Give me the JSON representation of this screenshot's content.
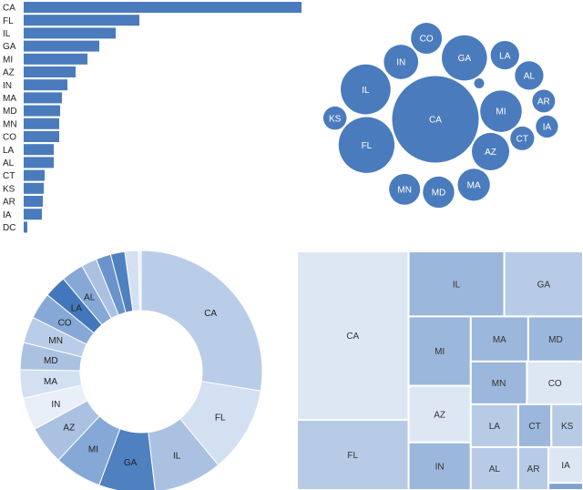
{
  "chart_data": [
    {
      "type": "bar",
      "color": "#4a7bbd",
      "categories": [
        "CA",
        "FL",
        "IL",
        "GA",
        "MI",
        "AZ",
        "IN",
        "MA",
        "MD",
        "MN",
        "CO",
        "LA",
        "AL",
        "CT",
        "KS",
        "AR",
        "IA",
        "DC"
      ],
      "values": [
        305,
        127,
        101,
        83,
        70,
        57,
        48,
        42,
        40,
        39,
        39,
        33,
        33,
        23,
        22,
        21,
        20,
        4
      ]
    },
    {
      "type": "bubble",
      "color": "#4a7bbd",
      "categories": [
        "CA",
        "FL",
        "IL",
        "GA",
        "MI",
        "AZ",
        "IN",
        "MA",
        "MD",
        "MN",
        "CO",
        "LA",
        "AL",
        "CT",
        "KS",
        "AR",
        "IA",
        null
      ],
      "values": [
        305,
        127,
        101,
        83,
        70,
        57,
        48,
        42,
        40,
        39,
        39,
        33,
        33,
        23,
        22,
        21,
        20,
        4
      ]
    },
    {
      "type": "donut",
      "categories": [
        "CA",
        "FL",
        "IL",
        "GA",
        "MI",
        "AZ",
        "IN",
        "MA",
        "MD",
        "MN",
        "CO",
        "LA",
        "AL",
        null,
        null,
        null,
        null,
        null
      ],
      "values": [
        305,
        127,
        101,
        83,
        70,
        57,
        48,
        42,
        40,
        39,
        39,
        33,
        33,
        23,
        22,
        21,
        20,
        4
      ],
      "colors": [
        "#b9cde8",
        "#d3e0f2",
        "#aac1e2",
        "#4f80c0",
        "#86a8d6",
        "#aac1e2",
        "#e9eff9",
        "#d3e0f2",
        "#aac1e2",
        "#b9cde8",
        "#86a8d6",
        "#4377bb",
        "#86a8d6",
        "#aac1e2",
        "#6b93cb",
        "#4f80c0",
        "#d3e0f2",
        "#e9eff9"
      ]
    },
    {
      "type": "treemap",
      "categories": [
        "CA",
        "FL",
        "IL",
        "GA",
        "MI",
        "AZ",
        "IN",
        "MA",
        "MD",
        "MN",
        "CO",
        "LA",
        "AL",
        "CT",
        "KS",
        "AR",
        "IA",
        null
      ],
      "values": [
        305,
        127,
        101,
        83,
        70,
        57,
        48,
        42,
        40,
        39,
        39,
        33,
        33,
        23,
        22,
        21,
        20,
        4
      ],
      "colors": [
        "#dde7f4",
        "#b7cbe6",
        "#9cb7dc",
        "#b7cbe6",
        "#9cb7dc",
        "#dde7f4",
        "#9cb7dc",
        "#9cb7dc",
        "#9cb7dc",
        "#9cb7dc",
        "#dde7f4",
        "#b7cbe6",
        "#b7cbe6",
        "#9cb7dc",
        "#b7cbe6",
        "#b7cbe6",
        "#dde7f4",
        "#7ea2d2"
      ]
    }
  ]
}
